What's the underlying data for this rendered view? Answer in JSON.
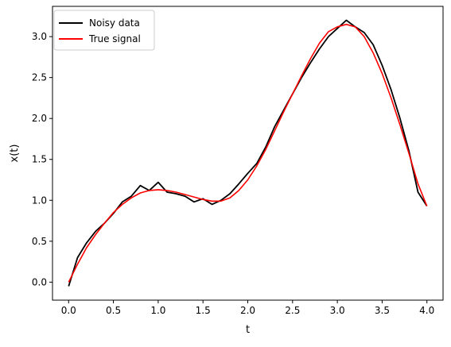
{
  "chart_data": {
    "type": "line",
    "xlabel": "t",
    "ylabel": "x(t)",
    "xlim": [
      -0.18,
      4.18
    ],
    "ylim": [
      -0.22,
      3.37
    ],
    "xticks": [
      0.0,
      0.5,
      1.0,
      1.5,
      2.0,
      2.5,
      3.0,
      3.5,
      4.0
    ],
    "xtick_labels": [
      "0.0",
      "0.5",
      "1.0",
      "1.5",
      "2.0",
      "2.5",
      "3.0",
      "3.5",
      "4.0"
    ],
    "yticks": [
      0.0,
      0.5,
      1.0,
      1.5,
      2.0,
      2.5,
      3.0
    ],
    "ytick_labels": [
      "0.0",
      "0.5",
      "1.0",
      "1.5",
      "2.0",
      "2.5",
      "3.0"
    ],
    "grid": false,
    "legend_position": "top-left",
    "series": [
      {
        "name": "Noisy data",
        "color": "#000000",
        "x": [
          0.0,
          0.1,
          0.2,
          0.3,
          0.4,
          0.5,
          0.6,
          0.7,
          0.8,
          0.9,
          1.0,
          1.1,
          1.2,
          1.3,
          1.4,
          1.5,
          1.6,
          1.7,
          1.8,
          1.9,
          2.0,
          2.1,
          2.2,
          2.3,
          2.4,
          2.5,
          2.6,
          2.7,
          2.8,
          2.9,
          3.0,
          3.1,
          3.2,
          3.3,
          3.4,
          3.5,
          3.6,
          3.7,
          3.8,
          3.9,
          4.0
        ],
        "y": [
          -0.05,
          0.3,
          0.48,
          0.62,
          0.72,
          0.84,
          0.98,
          1.05,
          1.18,
          1.12,
          1.22,
          1.1,
          1.08,
          1.05,
          0.98,
          1.02,
          0.95,
          1.0,
          1.08,
          1.2,
          1.33,
          1.45,
          1.65,
          1.9,
          2.1,
          2.3,
          2.5,
          2.68,
          2.85,
          3.0,
          3.1,
          3.2,
          3.12,
          3.05,
          2.9,
          2.65,
          2.35,
          2.0,
          1.6,
          1.1,
          0.93
        ]
      },
      {
        "name": "True signal",
        "color": "#ff0000",
        "x": [
          0.0,
          0.1,
          0.2,
          0.3,
          0.4,
          0.5,
          0.6,
          0.7,
          0.8,
          0.9,
          1.0,
          1.1,
          1.2,
          1.3,
          1.4,
          1.5,
          1.6,
          1.7,
          1.8,
          1.9,
          2.0,
          2.1,
          2.2,
          2.3,
          2.4,
          2.5,
          2.6,
          2.7,
          2.8,
          2.9,
          3.0,
          3.1,
          3.2,
          3.3,
          3.4,
          3.5,
          3.6,
          3.7,
          3.8,
          3.9,
          4.0
        ],
        "y": [
          0.0,
          0.22,
          0.42,
          0.58,
          0.72,
          0.85,
          0.95,
          1.03,
          1.09,
          1.12,
          1.13,
          1.12,
          1.1,
          1.07,
          1.04,
          1.01,
          0.99,
          0.99,
          1.03,
          1.12,
          1.25,
          1.42,
          1.62,
          1.85,
          2.08,
          2.3,
          2.52,
          2.73,
          2.92,
          3.06,
          3.12,
          3.15,
          3.12,
          3.0,
          2.8,
          2.55,
          2.25,
          1.92,
          1.57,
          1.2,
          0.93
        ]
      }
    ]
  }
}
